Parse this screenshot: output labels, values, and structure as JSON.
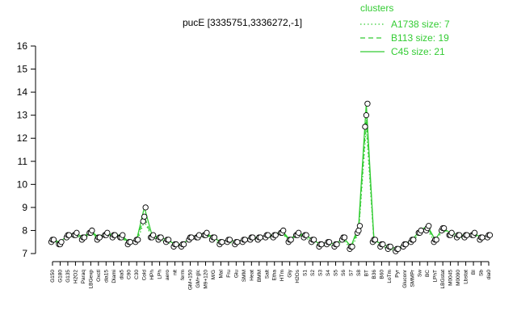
{
  "chart_data": {
    "type": "line",
    "title": "pucE [3335751,3336272,-1]",
    "legend_title": "clusters",
    "categories": [
      "G150",
      "G180",
      "G135",
      "H2O2",
      "Paraq",
      "LBGexp",
      "Oxctl",
      "dia15",
      "Diami",
      "dia5",
      "C90",
      "C30",
      "Cold",
      "HPh",
      "LPh",
      "aero",
      "nit",
      "ferm",
      "GM+150",
      "GM+glc",
      "M9+120",
      "M/G",
      "Mal",
      "Fru",
      "Glu",
      "SMM",
      "Heat",
      "BMM",
      "Salt",
      "Etha",
      "HTm",
      "Gly",
      "H2Os",
      "S1",
      "S2",
      "S3",
      "S4",
      "S5",
      "S6",
      "S7",
      "S8",
      "BT",
      "B36",
      "B60",
      "LoTm",
      "Pyr",
      "Gluconr",
      "SMMPr",
      "Sw",
      "BC",
      "LPhT",
      "LBGstat",
      "M0045",
      "M0090",
      "Lbstat",
      "BI",
      "Sb",
      "dia0"
    ],
    "series": [
      {
        "name": "A1738 size: 7",
        "color": "#33cc33",
        "dash": "dotted",
        "values": [
          7.5,
          7.4,
          7.7,
          7.8,
          7.6,
          7.9,
          7.6,
          7.8,
          7.7,
          7.7,
          7.4,
          7.5,
          8.4,
          7.7,
          7.6,
          7.5,
          7.3,
          7.3,
          7.6,
          7.7,
          7.8,
          7.6,
          7.4,
          7.5,
          7.4,
          7.5,
          7.6,
          7.6,
          7.7,
          7.7,
          7.9,
          7.5,
          7.8,
          7.7,
          7.5,
          7.3,
          7.4,
          7.3,
          7.6,
          7.2,
          7.9,
          12.5,
          7.5,
          7.3,
          7.2,
          7.1,
          7.3,
          7.5,
          7.9,
          8.0,
          7.5,
          8.0,
          7.8,
          7.7,
          7.7,
          7.8,
          7.6,
          7.7
        ]
      },
      {
        "name": "B113 size: 19",
        "color": "#33cc33",
        "dash": "dashed",
        "values": [
          7.6,
          7.4,
          7.8,
          7.8,
          7.7,
          7.9,
          7.7,
          7.8,
          7.8,
          7.7,
          7.5,
          7.6,
          8.6,
          7.7,
          7.7,
          7.6,
          7.4,
          7.4,
          7.7,
          7.7,
          7.8,
          7.7,
          7.5,
          7.6,
          7.5,
          7.6,
          7.7,
          7.7,
          7.8,
          7.8,
          7.9,
          7.6,
          7.8,
          7.8,
          7.6,
          7.4,
          7.5,
          7.4,
          7.7,
          7.3,
          8.0,
          13.0,
          7.6,
          7.4,
          7.3,
          7.2,
          7.4,
          7.6,
          7.9,
          8.1,
          7.6,
          8.1,
          7.8,
          7.8,
          7.8,
          7.8,
          7.7,
          7.8
        ]
      },
      {
        "name": "C45 size: 21",
        "color": "#33cc33",
        "dash": "solid",
        "values": [
          7.6,
          7.5,
          7.8,
          7.9,
          7.7,
          8.0,
          7.7,
          7.9,
          7.8,
          7.8,
          7.5,
          7.6,
          9.0,
          7.8,
          7.7,
          7.6,
          7.4,
          7.4,
          7.7,
          7.8,
          7.9,
          7.7,
          7.5,
          7.6,
          7.5,
          7.6,
          7.7,
          7.7,
          7.8,
          7.8,
          8.0,
          7.6,
          7.9,
          7.8,
          7.6,
          7.4,
          7.5,
          7.4,
          7.7,
          7.3,
          8.2,
          13.5,
          7.6,
          7.4,
          7.3,
          7.2,
          7.4,
          7.6,
          8.0,
          8.2,
          7.6,
          8.1,
          7.9,
          7.8,
          7.8,
          7.9,
          7.7,
          7.8
        ]
      }
    ],
    "ylim": [
      7,
      16
    ],
    "yticks": [
      7,
      8,
      9,
      10,
      11,
      12,
      13,
      14,
      15,
      16
    ]
  }
}
